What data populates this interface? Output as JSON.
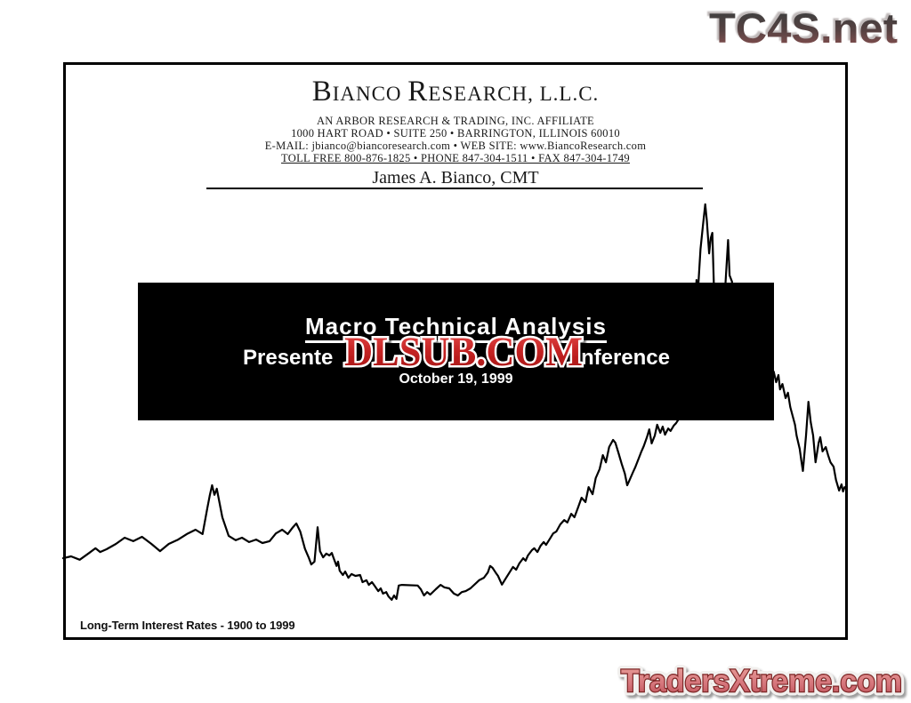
{
  "watermarks": {
    "top_right": "TC4S.net",
    "center_overlay": "DLSUB.COM",
    "bottom_right": "TradersXtreme.com"
  },
  "header": {
    "brand_parts": [
      "B",
      "IANCO ",
      "R",
      "ESEARCH, L.L.C."
    ],
    "brand_full": "BIANCO RESEARCH, L.L.C.",
    "affiliate_line": "AN ARBOR RESEARCH & TRADING, INC. AFFILIATE",
    "address_line": "1000 HART ROAD • SUITE 250 • BARRINGTON, ILLINOIS 60010",
    "contact_line": "E-MAIL:  jbianco@biancoresearch.com  •  WEB SITE:  www.BiancoResearch.com",
    "phone_line": "TOLL FREE  800-876-1825  •  PHONE  847-304-1511  •  FAX  847-304-1749",
    "author": "James A. Bianco, CMT"
  },
  "title_block": {
    "title": "Macro Technical Analysis",
    "subtitle_visible_left": "Presente",
    "subtitle_visible_right": "nference",
    "date": "October 19, 1999"
  },
  "chart_caption": "Long-Term Interest Rates - 1900 to 1999",
  "colors": {
    "page_ink": "#000000",
    "title_box_bg": "#000000",
    "title_box_text": "#ffffff",
    "dlsub_red": "#c32222",
    "tc4s_top": "#3e3e3e",
    "tc4s_bottom": "#8a5151",
    "traders_fill": "#d4737a",
    "traders_outline": "#7c2525"
  },
  "chart_data": {
    "type": "line",
    "title": "Long-Term Interest Rates - 1900 to 1999",
    "series_name": "Long-Term Interest Rates",
    "x_range": [
      1900,
      1999
    ],
    "y_range_est": [
      2.2,
      15.0
    ],
    "axes_shown": false,
    "grid": false,
    "legend": false,
    "points": [
      [
        1900.0,
        3.6
      ],
      [
        1901,
        3.66
      ],
      [
        1902.1,
        3.55
      ],
      [
        1903.3,
        3.77
      ],
      [
        1904.1,
        3.92
      ],
      [
        1904.7,
        3.8
      ],
      [
        1905.5,
        3.89
      ],
      [
        1906.7,
        4.06
      ],
      [
        1907.8,
        4.26
      ],
      [
        1908.9,
        4.15
      ],
      [
        1910,
        4.29
      ],
      [
        1911.2,
        4.06
      ],
      [
        1912.3,
        3.83
      ],
      [
        1913.4,
        4.06
      ],
      [
        1914.6,
        4.2
      ],
      [
        1915.7,
        4.38
      ],
      [
        1916.8,
        4.52
      ],
      [
        1917.7,
        4.38
      ],
      [
        1918.3,
        5.21
      ],
      [
        1918.6,
        5.61
      ],
      [
        1918.9,
        5.95
      ],
      [
        1919.2,
        5.64
      ],
      [
        1919.5,
        5.84
      ],
      [
        1920.2,
        4.92
      ],
      [
        1921,
        4.32
      ],
      [
        1921.9,
        4.18
      ],
      [
        1922.7,
        4.26
      ],
      [
        1923.6,
        4.12
      ],
      [
        1924.5,
        4.2
      ],
      [
        1925.3,
        4.09
      ],
      [
        1926.2,
        4.15
      ],
      [
        1927,
        4.4
      ],
      [
        1927.8,
        4.52
      ],
      [
        1928.5,
        4.38
      ],
      [
        1929.1,
        4.58
      ],
      [
        1929.6,
        4.72
      ],
      [
        1930.1,
        4.46
      ],
      [
        1930.7,
        3.9
      ],
      [
        1931.2,
        3.6
      ],
      [
        1931.5,
        3.4
      ],
      [
        1931.9,
        3.49
      ],
      [
        1932.3,
        4.6
      ],
      [
        1932.6,
        3.83
      ],
      [
        1933,
        3.63
      ],
      [
        1933.4,
        3.75
      ],
      [
        1933.8,
        3.69
      ],
      [
        1934.1,
        3.77
      ],
      [
        1934.3,
        3.63
      ],
      [
        1934.7,
        3.35
      ],
      [
        1934.9,
        3.49
      ],
      [
        1935.1,
        3.2
      ],
      [
        1935.5,
        3.06
      ],
      [
        1935.8,
        3.17
      ],
      [
        1936.2,
        2.97
      ],
      [
        1936.6,
        3.09
      ],
      [
        1937.1,
        3.03
      ],
      [
        1937.7,
        3.06
      ],
      [
        1938,
        2.83
      ],
      [
        1938.5,
        2.89
      ],
      [
        1938.8,
        2.74
      ],
      [
        1939.2,
        2.83
      ],
      [
        1939.5,
        2.72
      ],
      [
        1940,
        2.54
      ],
      [
        1940.3,
        2.63
      ],
      [
        1940.6,
        2.46
      ],
      [
        1941,
        2.51
      ],
      [
        1941.3,
        2.37
      ],
      [
        1941.7,
        2.26
      ],
      [
        1942,
        2.4
      ],
      [
        1942.3,
        2.29
      ],
      [
        1942.6,
        2.72
      ],
      [
        1943,
        2.74
      ],
      [
        1945,
        2.72
      ],
      [
        1945.4,
        2.6
      ],
      [
        1945.8,
        2.4
      ],
      [
        1946.2,
        2.51
      ],
      [
        1946.6,
        2.43
      ],
      [
        1947.3,
        2.6
      ],
      [
        1947.9,
        2.74
      ],
      [
        1948.4,
        2.66
      ],
      [
        1949,
        2.63
      ],
      [
        1949.6,
        2.46
      ],
      [
        1950.1,
        2.4
      ],
      [
        1950.6,
        2.51
      ],
      [
        1951.1,
        2.54
      ],
      [
        1951.7,
        2.63
      ],
      [
        1952.3,
        2.77
      ],
      [
        1952.8,
        2.89
      ],
      [
        1953.4,
        2.97
      ],
      [
        1953.9,
        3.14
      ],
      [
        1954.2,
        3.35
      ],
      [
        1954.5,
        3.29
      ],
      [
        1954.9,
        3.14
      ],
      [
        1955.2,
        3.03
      ],
      [
        1955.7,
        2.75
      ],
      [
        1956.1,
        2.92
      ],
      [
        1956.6,
        3.12
      ],
      [
        1957.1,
        3.32
      ],
      [
        1957.5,
        3.23
      ],
      [
        1957.9,
        3.43
      ],
      [
        1958.4,
        3.6
      ],
      [
        1958.7,
        3.52
      ],
      [
        1959,
        3.69
      ],
      [
        1959.5,
        3.86
      ],
      [
        1959.8,
        3.92
      ],
      [
        1960.2,
        3.8
      ],
      [
        1960.6,
        4.0
      ],
      [
        1961,
        4.12
      ],
      [
        1961.3,
        4.03
      ],
      [
        1961.8,
        4.23
      ],
      [
        1962.2,
        4.4
      ],
      [
        1962.6,
        4.46
      ],
      [
        1963.1,
        4.69
      ],
      [
        1963.6,
        4.83
      ],
      [
        1964,
        4.75
      ],
      [
        1964.5,
        5.03
      ],
      [
        1964.9,
        4.92
      ],
      [
        1965.4,
        5.26
      ],
      [
        1965.8,
        5.55
      ],
      [
        1966.3,
        5.41
      ],
      [
        1966.7,
        5.89
      ],
      [
        1967.2,
        5.66
      ],
      [
        1967.6,
        6.18
      ],
      [
        1968.1,
        6.47
      ],
      [
        1968.5,
        6.92
      ],
      [
        1968.9,
        6.69
      ],
      [
        1969.3,
        7.18
      ],
      [
        1969.8,
        7.41
      ],
      [
        1970.1,
        7.32
      ],
      [
        1970.5,
        6.98
      ],
      [
        1970.9,
        6.64
      ],
      [
        1971.3,
        6.32
      ],
      [
        1971.6,
        5.95
      ],
      [
        1971.9,
        6.12
      ],
      [
        1972.3,
        6.35
      ],
      [
        1972.6,
        6.52
      ],
      [
        1973.1,
        6.84
      ],
      [
        1973.4,
        7.04
      ],
      [
        1973.7,
        7.21
      ],
      [
        1974.1,
        7.5
      ],
      [
        1974.4,
        7.75
      ],
      [
        1974.7,
        7.3
      ],
      [
        1975.1,
        7.55
      ],
      [
        1975.4,
        7.9
      ],
      [
        1975.8,
        7.64
      ],
      [
        1976.1,
        7.84
      ],
      [
        1976.4,
        7.58
      ],
      [
        1976.8,
        7.78
      ],
      [
        1977.1,
        7.7
      ],
      [
        1977.5,
        7.87
      ],
      [
        1977.8,
        7.95
      ],
      [
        1978.1,
        8.07
      ],
      [
        1978.7,
        8.55
      ],
      [
        1979.3,
        9.27
      ],
      [
        1979.8,
        10.42
      ],
      [
        1980.2,
        11.56
      ],
      [
        1980.4,
        12.56
      ],
      [
        1980.5,
        11.85
      ],
      [
        1980.7,
        12.71
      ],
      [
        1980.9,
        13.56
      ],
      [
        1981.2,
        14.28
      ],
      [
        1981.5,
        15.0
      ],
      [
        1981.7,
        14.48
      ],
      [
        1982,
        13.42
      ],
      [
        1982.2,
        13.91
      ],
      [
        1982.4,
        14.08
      ],
      [
        1982.6,
        12.42
      ],
      [
        1983,
        11.27
      ],
      [
        1983.3,
        11.7
      ],
      [
        1983.6,
        11.56
      ],
      [
        1984,
        12.13
      ],
      [
        1984.2,
        12.99
      ],
      [
        1984.4,
        13.85
      ],
      [
        1984.6,
        12.71
      ],
      [
        1984.9,
        12.51
      ],
      [
        1985,
        11.85
      ],
      [
        1985.2,
        10.7
      ],
      [
        1985.6,
        10.13
      ],
      [
        1986.1,
        9.56
      ],
      [
        1986.6,
        8.84
      ],
      [
        1987,
        9.13
      ],
      [
        1987.5,
        9.7
      ],
      [
        1987.9,
        9.41
      ],
      [
        1988.4,
        8.98
      ],
      [
        1988.8,
        9.27
      ],
      [
        1989.3,
        9.13
      ],
      [
        1989.7,
        9.41
      ],
      [
        1990.2,
        9.61
      ],
      [
        1990.5,
        9.27
      ],
      [
        1990.8,
        9.5
      ],
      [
        1991,
        9.04
      ],
      [
        1991.3,
        9.21
      ],
      [
        1991.7,
        8.76
      ],
      [
        1992,
        8.93
      ],
      [
        1992.3,
        8.47
      ],
      [
        1992.6,
        8.18
      ],
      [
        1992.9,
        7.9
      ],
      [
        1993.1,
        7.55
      ],
      [
        1993.5,
        7.12
      ],
      [
        1993.7,
        6.75
      ],
      [
        1993.9,
        6.41
      ],
      [
        1994.3,
        7.55
      ],
      [
        1994.6,
        8.64
      ],
      [
        1994.9,
        7.98
      ],
      [
        1995.2,
        7.55
      ],
      [
        1995.5,
        6.69
      ],
      [
        1995.9,
        7.32
      ],
      [
        1996.1,
        7.5
      ],
      [
        1996.4,
        7.04
      ],
      [
        1996.8,
        7.18
      ],
      [
        1997.1,
        6.92
      ],
      [
        1997.4,
        6.69
      ],
      [
        1997.8,
        6.55
      ],
      [
        1998.1,
        6.12
      ],
      [
        1998.5,
        5.78
      ],
      [
        1998.8,
        5.98
      ],
      [
        1999,
        5.75
      ],
      [
        1999.2,
        5.89
      ]
    ]
  }
}
